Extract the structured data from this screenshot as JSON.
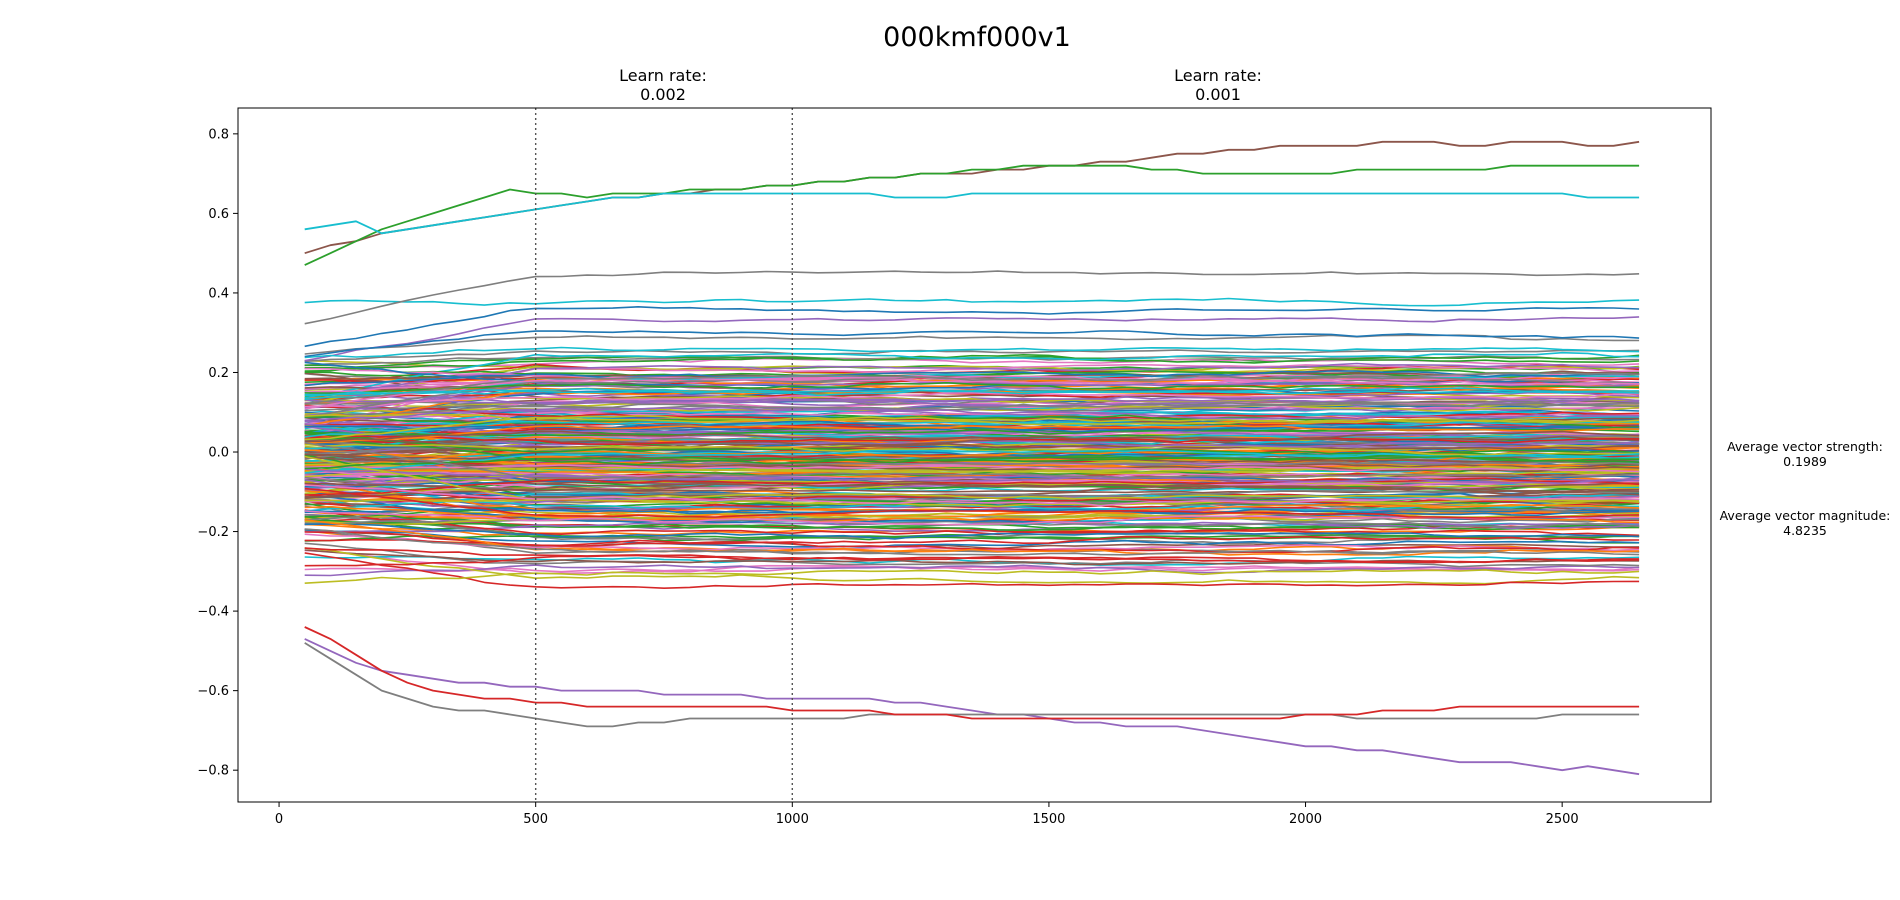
{
  "chart_data": {
    "type": "line",
    "title": "000kmf000v1",
    "xlabel": "",
    "ylabel": "",
    "xlim": [
      -80,
      2790
    ],
    "ylim": [
      -0.88,
      0.865
    ],
    "x_ticks": [
      0,
      500,
      1000,
      1500,
      2000,
      2500
    ],
    "x_tick_labels": [
      "0",
      "500",
      "1000",
      "1500",
      "2000",
      "2500"
    ],
    "y_ticks": [
      0.8,
      0.6,
      0.4,
      0.2,
      0.0,
      -0.2,
      -0.4,
      -0.6,
      -0.8
    ],
    "y_tick_labels": [
      "0.8",
      "0.6",
      "0.4",
      "0.2",
      "0.0",
      "−0.2",
      "−0.4",
      "−0.6",
      "−0.8"
    ],
    "grid": false,
    "legend": "none",
    "x_step": 50,
    "x_start": 50,
    "x_end": 2650,
    "phase_boundaries": [
      500,
      1000
    ],
    "annotations": [
      {
        "label": "Learn rate:",
        "value": "0.002",
        "x": 750
      },
      {
        "label": "Learn rate:",
        "value": "0.001",
        "x": 1825
      }
    ],
    "stats": {
      "strength_label": "Average vector strength:",
      "strength_value": "0.1989",
      "magnitude_label": "Average vector magnitude:",
      "magnitude_value": "4.8235"
    },
    "palette": [
      "#1f77b4",
      "#ff7f0e",
      "#2ca02c",
      "#d62728",
      "#9467bd",
      "#8c564b",
      "#e377c2",
      "#7f7f7f",
      "#bcbd22",
      "#17becf"
    ],
    "series_count": 300,
    "series_note": "Hundreds of unlabeled trajectories; final values span roughly -0.81 to 0.78, densest between -0.5 and 0.5.",
    "highlight_series": [
      {
        "color": "#8c564b",
        "values": [
          0.5,
          0.52,
          0.53,
          0.55,
          0.56,
          0.57,
          0.58,
          0.59,
          0.6,
          0.61,
          0.62,
          0.63,
          0.64,
          0.64,
          0.65,
          0.65,
          0.66,
          0.66,
          0.67,
          0.67,
          0.68,
          0.68,
          0.69,
          0.69,
          0.7,
          0.7,
          0.7,
          0.71,
          0.71,
          0.72,
          0.72,
          0.73,
          0.73,
          0.74,
          0.75,
          0.75,
          0.76,
          0.76,
          0.77,
          0.77,
          0.77,
          0.77,
          0.78,
          0.78,
          0.78,
          0.77,
          0.77,
          0.78,
          0.78,
          0.78,
          0.77,
          0.77,
          0.78
        ]
      },
      {
        "color": "#2ca02c",
        "values": [
          0.47,
          0.5,
          0.53,
          0.56,
          0.58,
          0.6,
          0.62,
          0.64,
          0.66,
          0.65,
          0.65,
          0.64,
          0.65,
          0.65,
          0.65,
          0.66,
          0.66,
          0.66,
          0.67,
          0.67,
          0.68,
          0.68,
          0.69,
          0.69,
          0.7,
          0.7,
          0.71,
          0.71,
          0.72,
          0.72,
          0.72,
          0.72,
          0.72,
          0.71,
          0.71,
          0.7,
          0.7,
          0.7,
          0.7,
          0.7,
          0.7,
          0.71,
          0.71,
          0.71,
          0.71,
          0.71,
          0.71,
          0.72,
          0.72,
          0.72,
          0.72,
          0.72,
          0.72
        ]
      },
      {
        "color": "#17becf",
        "values": [
          0.56,
          0.57,
          0.58,
          0.55,
          0.56,
          0.57,
          0.58,
          0.59,
          0.6,
          0.61,
          0.62,
          0.63,
          0.64,
          0.64,
          0.65,
          0.65,
          0.65,
          0.65,
          0.65,
          0.65,
          0.65,
          0.65,
          0.65,
          0.64,
          0.64,
          0.64,
          0.65,
          0.65,
          0.65,
          0.65,
          0.65,
          0.65,
          0.65,
          0.65,
          0.65,
          0.65,
          0.65,
          0.65,
          0.65,
          0.65,
          0.65,
          0.65,
          0.65,
          0.65,
          0.65,
          0.65,
          0.65,
          0.65,
          0.65,
          0.65,
          0.64,
          0.64,
          0.64
        ]
      },
      {
        "color": "#9467bd",
        "values": [
          -0.47,
          -0.5,
          -0.53,
          -0.55,
          -0.56,
          -0.57,
          -0.58,
          -0.58,
          -0.59,
          -0.59,
          -0.6,
          -0.6,
          -0.6,
          -0.6,
          -0.61,
          -0.61,
          -0.61,
          -0.61,
          -0.62,
          -0.62,
          -0.62,
          -0.62,
          -0.62,
          -0.63,
          -0.63,
          -0.64,
          -0.65,
          -0.66,
          -0.66,
          -0.67,
          -0.68,
          -0.68,
          -0.69,
          -0.69,
          -0.69,
          -0.7,
          -0.71,
          -0.72,
          -0.73,
          -0.74,
          -0.74,
          -0.75,
          -0.75,
          -0.76,
          -0.77,
          -0.78,
          -0.78,
          -0.78,
          -0.79,
          -0.8,
          -0.79,
          -0.8,
          -0.81
        ]
      },
      {
        "color": "#7f7f7f",
        "values": [
          -0.48,
          -0.52,
          -0.56,
          -0.6,
          -0.62,
          -0.64,
          -0.65,
          -0.65,
          -0.66,
          -0.67,
          -0.68,
          -0.69,
          -0.69,
          -0.68,
          -0.68,
          -0.67,
          -0.67,
          -0.67,
          -0.67,
          -0.67,
          -0.67,
          -0.67,
          -0.66,
          -0.66,
          -0.66,
          -0.66,
          -0.66,
          -0.66,
          -0.66,
          -0.66,
          -0.66,
          -0.66,
          -0.66,
          -0.66,
          -0.66,
          -0.66,
          -0.66,
          -0.66,
          -0.66,
          -0.66,
          -0.66,
          -0.67,
          -0.67,
          -0.67,
          -0.67,
          -0.67,
          -0.67,
          -0.67,
          -0.67,
          -0.66,
          -0.66,
          -0.66,
          -0.66
        ]
      },
      {
        "color": "#d62728",
        "values": [
          -0.44,
          -0.47,
          -0.51,
          -0.55,
          -0.58,
          -0.6,
          -0.61,
          -0.62,
          -0.62,
          -0.63,
          -0.63,
          -0.64,
          -0.64,
          -0.64,
          -0.64,
          -0.64,
          -0.64,
          -0.64,
          -0.64,
          -0.65,
          -0.65,
          -0.65,
          -0.65,
          -0.66,
          -0.66,
          -0.66,
          -0.67,
          -0.67,
          -0.67,
          -0.67,
          -0.67,
          -0.67,
          -0.67,
          -0.67,
          -0.67,
          -0.67,
          -0.67,
          -0.67,
          -0.67,
          -0.66,
          -0.66,
          -0.66,
          -0.65,
          -0.65,
          -0.65,
          -0.64,
          -0.64,
          -0.64,
          -0.64,
          -0.64,
          -0.64,
          -0.64,
          -0.64
        ]
      }
    ]
  }
}
